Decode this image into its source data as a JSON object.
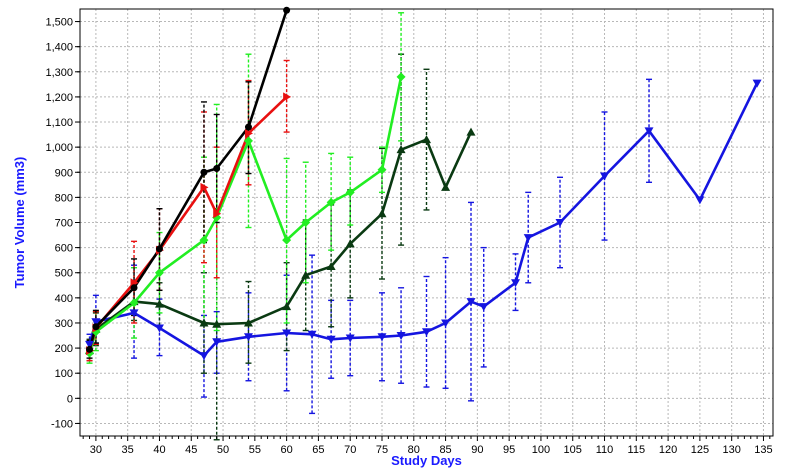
{
  "chart_data": {
    "type": "line",
    "title": "",
    "xlabel": "Study Days",
    "ylabel": "Tumor Volume (mm3)",
    "axis_label_color": "#1a1aff",
    "xlim": [
      27.5,
      136.5
    ],
    "ylim": [
      -150,
      1550
    ],
    "x_ticks": [
      30,
      35,
      40,
      45,
      50,
      55,
      60,
      65,
      70,
      75,
      80,
      85,
      90,
      95,
      100,
      105,
      110,
      115,
      120,
      125,
      130,
      135
    ],
    "y_ticks": [
      -100,
      0,
      100,
      200,
      300,
      400,
      500,
      600,
      700,
      800,
      900,
      1000,
      1100,
      1200,
      1300,
      1400,
      1500
    ],
    "y_tick_labels": [
      "-100",
      "0",
      "100",
      "200",
      "300",
      "400",
      "500",
      "600",
      "700",
      "800",
      "900",
      "1,000",
      "1,100",
      "1,200",
      "1,300",
      "1,400",
      "1,500"
    ],
    "grid": true,
    "series": [
      {
        "color": "#1515e0",
        "marker": "triangle-down",
        "points": [
          {
            "x": 29,
            "y": 215,
            "lo": 175,
            "hi": 255
          },
          {
            "x": 30,
            "y": 305,
            "lo": 220,
            "hi": 410
          },
          {
            "x": 36,
            "y": 340,
            "lo": 160,
            "hi": 530
          },
          {
            "x": 40,
            "y": 280,
            "lo": 170,
            "hi": 395
          },
          {
            "x": 47,
            "y": 170,
            "lo": 5,
            "hi": 330
          },
          {
            "x": 49,
            "y": 225,
            "lo": 100,
            "hi": 345
          },
          {
            "x": 54,
            "y": 245,
            "lo": 70,
            "hi": 420
          },
          {
            "x": 60,
            "y": 260,
            "lo": 30,
            "hi": 490
          },
          {
            "x": 64,
            "y": 255,
            "lo": -60,
            "hi": 570
          },
          {
            "x": 67,
            "y": 235,
            "lo": 80,
            "hi": 390
          },
          {
            "x": 70,
            "y": 240,
            "lo": 90,
            "hi": 390
          },
          {
            "x": 75,
            "y": 245,
            "lo": 70,
            "hi": 420
          },
          {
            "x": 78,
            "y": 250,
            "lo": 60,
            "hi": 440
          },
          {
            "x": 82,
            "y": 265,
            "lo": 45,
            "hi": 485
          },
          {
            "x": 85,
            "y": 300,
            "lo": 40,
            "hi": 560
          },
          {
            "x": 89,
            "y": 385,
            "lo": -10,
            "hi": 780
          },
          {
            "x": 91,
            "y": 365,
            "lo": 125,
            "hi": 600
          },
          {
            "x": 96,
            "y": 460,
            "lo": 350,
            "hi": 575
          },
          {
            "x": 98,
            "y": 640,
            "lo": 460,
            "hi": 820
          },
          {
            "x": 103,
            "y": 700,
            "lo": 520,
            "hi": 880
          },
          {
            "x": 110,
            "y": 885,
            "lo": 630,
            "hi": 1140
          },
          {
            "x": 117,
            "y": 1065,
            "lo": 860,
            "hi": 1270
          },
          {
            "x": 125,
            "y": 790
          },
          {
            "x": 134,
            "y": 1255
          }
        ]
      },
      {
        "color": "#0a3a12",
        "marker": "triangle-up",
        "points": [
          {
            "x": 29,
            "y": 190,
            "lo": 150,
            "hi": 235
          },
          {
            "x": 30,
            "y": 275,
            "lo": 210,
            "hi": 340
          },
          {
            "x": 36,
            "y": 385,
            "lo": 310,
            "hi": 455
          },
          {
            "x": 40,
            "y": 375,
            "lo": 290,
            "hi": 460
          },
          {
            "x": 47,
            "y": 300,
            "lo": 100,
            "hi": 500
          },
          {
            "x": 49,
            "y": 295,
            "lo": -165,
            "hi": 755
          },
          {
            "x": 54,
            "y": 300,
            "lo": 140,
            "hi": 465
          },
          {
            "x": 60,
            "y": 365,
            "lo": 190,
            "hi": 540
          },
          {
            "x": 63,
            "y": 490,
            "lo": 270,
            "hi": 710
          },
          {
            "x": 67,
            "y": 525,
            "lo": 285,
            "hi": 770
          },
          {
            "x": 70,
            "y": 615,
            "lo": 400,
            "hi": 830
          },
          {
            "x": 75,
            "y": 735,
            "lo": 475,
            "hi": 995
          },
          {
            "x": 78,
            "y": 990,
            "lo": 610,
            "hi": 1370
          },
          {
            "x": 82,
            "y": 1030,
            "lo": 750,
            "hi": 1310
          },
          {
            "x": 85,
            "y": 840
          },
          {
            "x": 89,
            "y": 1060
          }
        ]
      },
      {
        "color": "#22ee22",
        "marker": "diamond",
        "points": [
          {
            "x": 29,
            "y": 180,
            "lo": 140,
            "hi": 220
          },
          {
            "x": 30,
            "y": 265,
            "lo": 190,
            "hi": 345
          },
          {
            "x": 36,
            "y": 380,
            "lo": 240,
            "hi": 520
          },
          {
            "x": 40,
            "y": 500,
            "lo": 340,
            "hi": 660
          },
          {
            "x": 47,
            "y": 630,
            "lo": 300,
            "hi": 960
          },
          {
            "x": 49,
            "y": 720,
            "lo": 270,
            "hi": 1170
          },
          {
            "x": 54,
            "y": 1025,
            "lo": 680,
            "hi": 1370
          },
          {
            "x": 60,
            "y": 630,
            "lo": 300,
            "hi": 955
          },
          {
            "x": 63,
            "y": 700,
            "lo": 460,
            "hi": 940
          },
          {
            "x": 67,
            "y": 780,
            "lo": 590,
            "hi": 975
          },
          {
            "x": 70,
            "y": 820,
            "lo": 690,
            "hi": 960
          },
          {
            "x": 75,
            "y": 910,
            "lo": 820,
            "hi": 1000
          },
          {
            "x": 78,
            "y": 1280,
            "lo": 1025,
            "hi": 1535
          }
        ]
      },
      {
        "color": "#e81010",
        "marker": "triangle-right",
        "points": [
          {
            "x": 29,
            "y": 190,
            "lo": 150,
            "hi": 230
          },
          {
            "x": 30,
            "y": 280,
            "lo": 215,
            "hi": 345
          },
          {
            "x": 36,
            "y": 460,
            "lo": 300,
            "hi": 625
          },
          {
            "x": 40,
            "y": 590,
            "lo": 430,
            "hi": 755
          },
          {
            "x": 47,
            "y": 840,
            "lo": 540,
            "hi": 1140
          },
          {
            "x": 49,
            "y": 735,
            "lo": 480,
            "hi": 1000
          },
          {
            "x": 54,
            "y": 1055,
            "lo": 850,
            "hi": 1265
          },
          {
            "x": 60,
            "y": 1200,
            "lo": 1060,
            "hi": 1345
          }
        ]
      },
      {
        "color": "#000000",
        "marker": "circle",
        "points": [
          {
            "x": 29,
            "y": 195,
            "lo": 160,
            "hi": 230
          },
          {
            "x": 30,
            "y": 285,
            "lo": 220,
            "hi": 350
          },
          {
            "x": 36,
            "y": 440,
            "lo": 330,
            "hi": 555
          },
          {
            "x": 40,
            "y": 595,
            "lo": 430,
            "hi": 755
          },
          {
            "x": 47,
            "y": 900,
            "lo": 620,
            "hi": 1180
          },
          {
            "x": 49,
            "y": 915,
            "lo": 700,
            "hi": 1130
          },
          {
            "x": 54,
            "y": 1080,
            "lo": 895,
            "hi": 1260
          },
          {
            "x": 60,
            "y": 1545
          }
        ]
      }
    ]
  }
}
